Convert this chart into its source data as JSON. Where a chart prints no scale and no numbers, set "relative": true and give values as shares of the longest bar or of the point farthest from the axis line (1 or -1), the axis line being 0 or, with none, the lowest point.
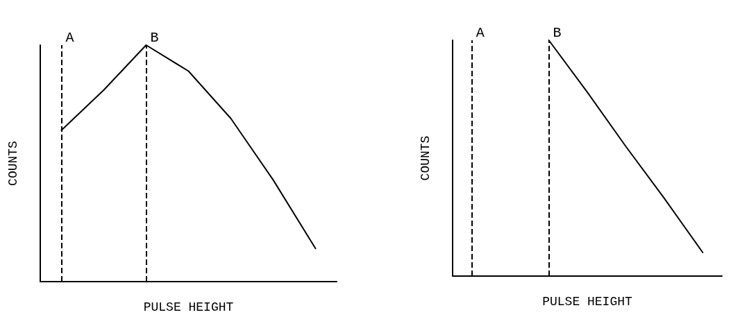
{
  "chart_data": [
    {
      "type": "line",
      "relative": true,
      "xlabel": "PULSE HEIGHT",
      "ylabel": "COUNTS",
      "marker": "none",
      "line_style": "solid",
      "categories": [
        null,
        null,
        null,
        null,
        null,
        null,
        null
      ],
      "series": [
        {
          "color": "#000000",
          "values": [
            0.64,
            0.81,
            1,
            0.89,
            0.69,
            0.43,
            0.14
          ]
        }
      ],
      "annotations": [
        "A",
        "B"
      ]
    },
    {
      "type": "line",
      "relative": true,
      "xlabel": "PULSE HEIGHT",
      "ylabel": "COUNTS",
      "marker": "none",
      "line_style": "solid",
      "categories": [
        null,
        null,
        null,
        null,
        null,
        null,
        null
      ],
      "series": [
        {
          "color": "#000000",
          "values": [
            null,
            null,
            1,
            0.78,
            0.55,
            0.33,
            0.1
          ]
        }
      ],
      "annotations": [
        "A",
        "B"
      ]
    }
  ]
}
